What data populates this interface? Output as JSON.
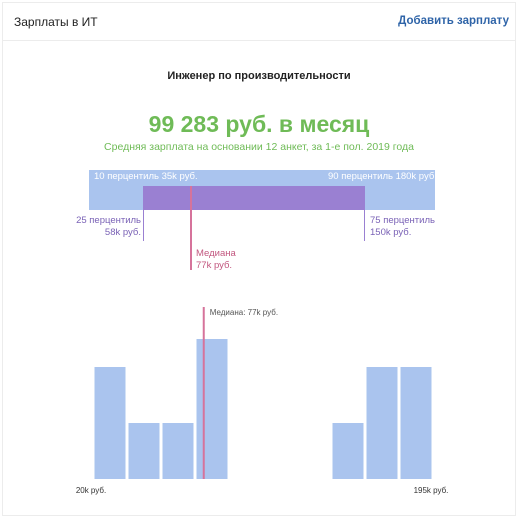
{
  "header": {
    "title": "Зарплаты в ИТ",
    "action_label": "Добавить зарплату"
  },
  "job_title": "Инженер по производительности",
  "salary": {
    "average_text": "99 283 руб. в месяц",
    "subtitle": "Средняя зарплата на основании 12 анкет, за 1-е пол. 2019 года"
  },
  "percentiles": {
    "p10": "10 перцентиль 35k руб.",
    "p90": "90 перцентиль 180k руб.",
    "p25_line1": "25 перцентиль",
    "p25_line2": "58k руб.",
    "p75_line1": "75 перцентиль",
    "p75_line2": "150k руб.",
    "median_line1": "Медиана",
    "median_line2": "77k руб."
  },
  "colors": {
    "accent_green": "#6fbb57",
    "bar_blue": "#aac4ee",
    "bar_purple": "#9a80d2",
    "median_pink": "#d6739b",
    "link_blue": "#2f64a8"
  },
  "chart_data": {
    "type": "bar",
    "x_range_labels": [
      "20k руб.",
      "195k руб."
    ],
    "x_range": [
      20,
      195
    ],
    "bin_count": 10,
    "values": [
      2,
      1,
      1,
      2.5,
      0,
      0,
      0,
      1,
      2,
      2
    ],
    "median_label": "Медиана: 77k руб.",
    "median_value": 77,
    "ylim": [
      0,
      2.5
    ]
  }
}
